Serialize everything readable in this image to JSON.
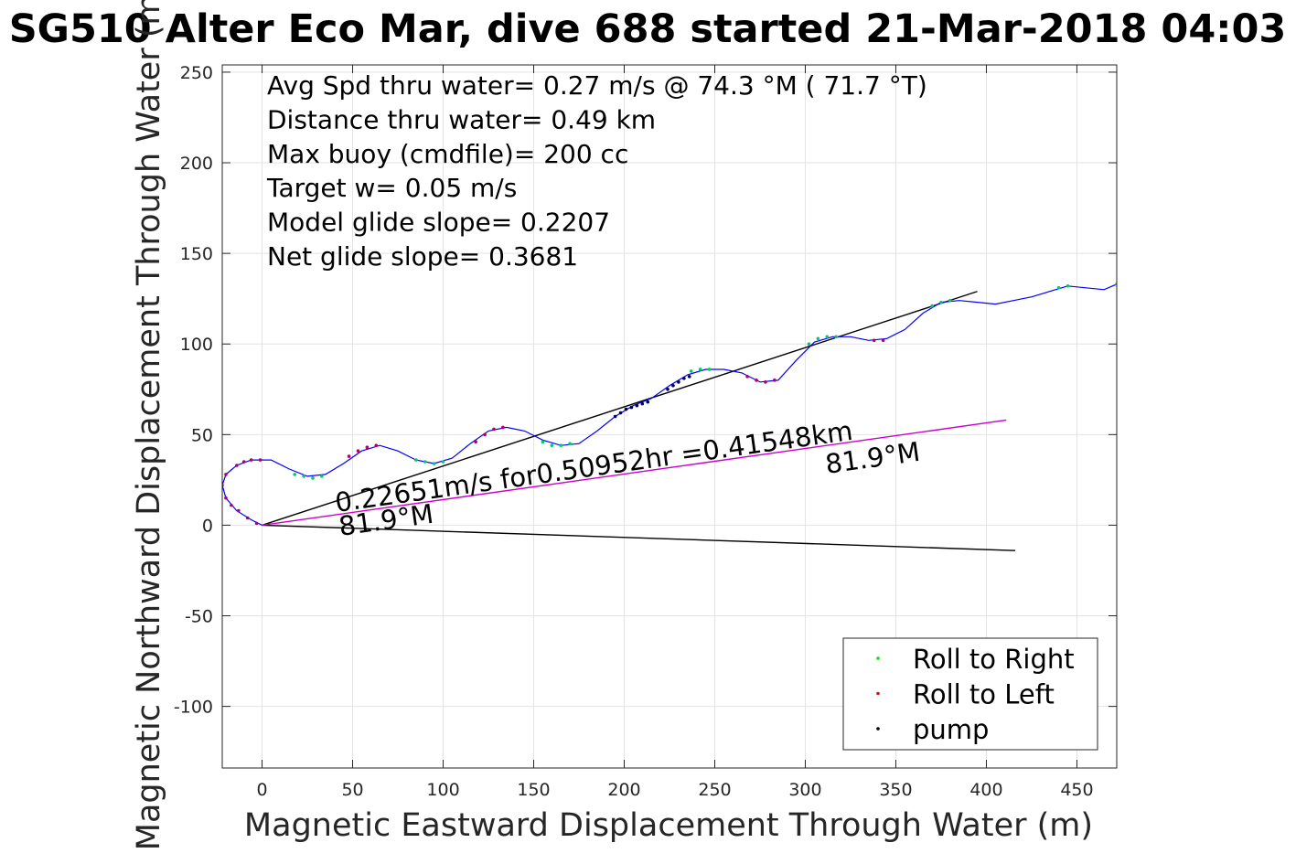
{
  "chart_data": {
    "type": "line",
    "title": "SG510 Alter Eco Mar, dive 688 started 21-Mar-2018 04:03",
    "xlabel": "Magnetic Eastward Displacement Through Water (m)",
    "ylabel": "Magnetic Northward Displacement Through Water (m)",
    "xlim": [
      -22,
      472
    ],
    "ylim": [
      -134,
      254
    ],
    "xticks": [
      "0",
      "50",
      "100",
      "150",
      "200",
      "250",
      "300",
      "350",
      "400",
      "450"
    ],
    "yticks": [
      "-100",
      "-50",
      "0",
      "50",
      "100",
      "150",
      "200",
      "250"
    ],
    "grid": true,
    "legend_position": "bottom-right",
    "legend": [
      {
        "label": "Roll to Right",
        "color": "#00ee00"
      },
      {
        "label": "Roll to Left",
        "color": "#ff0000"
      },
      {
        "label": "pump",
        "color": "#000000"
      }
    ],
    "stats": [
      "Avg Spd thru water=  0.27 m/s @  74.3 °M ( 71.7 °T)",
      "Distance thru water=  0.49 km",
      "Max buoy (cmdfile)= 200 cc",
      "Target w= 0.05 m/s",
      "Model glide slope= 0.2207",
      "Net glide slope= 0.3681"
    ],
    "current_label": "0.22651m/s for0.50952hr =0.41548km",
    "heading_labels": [
      "81.9°M",
      "81.9°M"
    ],
    "trajectory": {
      "color": "#0000ff",
      "points": [
        [
          0,
          0
        ],
        [
          -6,
          3
        ],
        [
          -14,
          8
        ],
        [
          -20,
          15
        ],
        [
          -22,
          22
        ],
        [
          -20,
          28
        ],
        [
          -14,
          33
        ],
        [
          -6,
          36
        ],
        [
          5,
          36
        ],
        [
          15,
          31
        ],
        [
          25,
          27
        ],
        [
          35,
          28
        ],
        [
          45,
          34
        ],
        [
          55,
          41
        ],
        [
          65,
          44
        ],
        [
          75,
          41
        ],
        [
          85,
          36
        ],
        [
          95,
          34
        ],
        [
          105,
          37
        ],
        [
          115,
          45
        ],
        [
          125,
          52
        ],
        [
          135,
          54
        ],
        [
          145,
          52
        ],
        [
          155,
          47
        ],
        [
          165,
          44
        ],
        [
          175,
          45
        ],
        [
          185,
          52
        ],
        [
          195,
          60
        ],
        [
          205,
          66
        ],
        [
          215,
          70
        ],
        [
          225,
          77
        ],
        [
          235,
          83
        ],
        [
          245,
          86
        ],
        [
          255,
          86
        ],
        [
          265,
          84
        ],
        [
          275,
          79
        ],
        [
          285,
          80
        ],
        [
          295,
          91
        ],
        [
          305,
          101
        ],
        [
          315,
          104
        ],
        [
          325,
          104
        ],
        [
          335,
          102
        ],
        [
          345,
          103
        ],
        [
          355,
          108
        ],
        [
          365,
          117
        ],
        [
          375,
          123
        ],
        [
          385,
          124
        ],
        [
          395,
          123
        ],
        [
          405,
          122
        ],
        [
          415,
          124
        ],
        [
          425,
          126
        ],
        [
          435,
          129
        ],
        [
          445,
          132
        ],
        [
          455,
          131
        ],
        [
          465,
          130
        ],
        [
          472,
          133
        ]
      ]
    },
    "roll_right_points": [
      [
        18,
        28
      ],
      [
        23,
        27
      ],
      [
        28,
        26
      ],
      [
        33,
        27
      ],
      [
        85,
        36
      ],
      [
        90,
        35
      ],
      [
        95,
        34
      ],
      [
        100,
        35
      ],
      [
        155,
        46
      ],
      [
        160,
        44
      ],
      [
        165,
        44
      ],
      [
        170,
        45
      ],
      [
        237,
        85
      ],
      [
        242,
        86
      ],
      [
        247,
        86
      ],
      [
        302,
        100
      ],
      [
        307,
        103
      ],
      [
        312,
        104
      ],
      [
        317,
        104
      ],
      [
        370,
        121
      ],
      [
        375,
        123
      ],
      [
        380,
        124
      ],
      [
        440,
        131
      ],
      [
        445,
        132
      ],
      [
        472,
        133
      ]
    ],
    "roll_left_points": [
      [
        -20,
        28
      ],
      [
        -22,
        22
      ],
      [
        -20,
        15
      ],
      [
        -17,
        11
      ],
      [
        -13,
        8
      ],
      [
        -8,
        4
      ],
      [
        -3,
        1
      ],
      [
        -14,
        33
      ],
      [
        -10,
        35
      ],
      [
        -6,
        36
      ],
      [
        -1,
        36
      ],
      [
        48,
        38
      ],
      [
        53,
        41
      ],
      [
        58,
        43
      ],
      [
        63,
        44
      ],
      [
        118,
        46
      ],
      [
        123,
        50
      ],
      [
        128,
        53
      ],
      [
        133,
        54
      ],
      [
        268,
        82
      ],
      [
        273,
        80
      ],
      [
        278,
        79
      ],
      [
        283,
        80
      ],
      [
        338,
        102
      ],
      [
        343,
        102
      ]
    ],
    "pump_points": [
      [
        195,
        60
      ],
      [
        198,
        62
      ],
      [
        201,
        64
      ],
      [
        204,
        65
      ],
      [
        207,
        66
      ],
      [
        210,
        67
      ],
      [
        213,
        68
      ],
      [
        224,
        75
      ],
      [
        227,
        77
      ],
      [
        230,
        79
      ],
      [
        233,
        81
      ],
      [
        236,
        82
      ]
    ],
    "reference_lines": [
      {
        "name": "net-glide-line",
        "color": "#000000",
        "from": [
          0,
          0
        ],
        "to": [
          395,
          129
        ]
      },
      {
        "name": "heading-line",
        "color": "#000000",
        "from": [
          0,
          0
        ],
        "to": [
          416,
          -14
        ]
      },
      {
        "name": "current-line",
        "color": "#cc00cc",
        "from": [
          0,
          0
        ],
        "to": [
          411,
          58
        ]
      }
    ]
  }
}
